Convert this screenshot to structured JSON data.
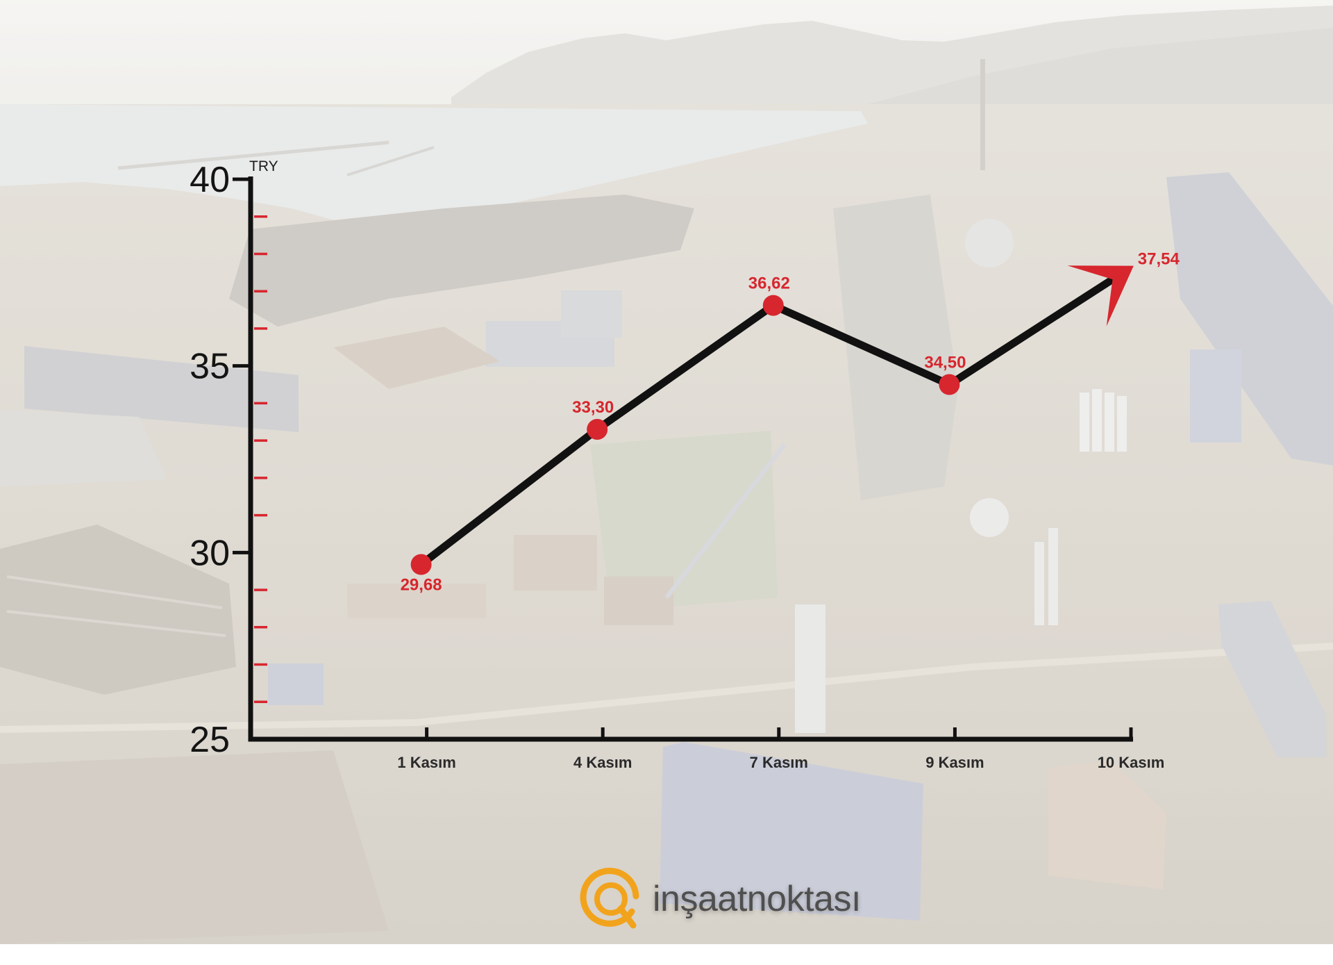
{
  "chart_data": {
    "type": "line",
    "ylabel": "TRY",
    "categories": [
      "1 Kasım",
      "4 Kasım",
      "7 Kasım",
      "9 Kasım",
      "10 Kasım"
    ],
    "values": [
      29.68,
      33.3,
      36.62,
      34.5,
      37.54
    ],
    "value_labels": [
      "29,68",
      "33,30",
      "36,62",
      "34,50",
      "37,54"
    ],
    "ylim": [
      25,
      40
    ],
    "yticks": [
      25,
      30,
      35,
      40
    ],
    "ytick_labels": [
      "25",
      "30",
      "35",
      "40"
    ],
    "y_minor_step": 1,
    "grid": false,
    "colors": {
      "line": "#111111",
      "axes": "#111111",
      "markers": "#d7262e",
      "value_labels": "#d7262e",
      "minor_ticks": "#d7262e"
    }
  },
  "logo": {
    "text": "inşaatnoktası",
    "icon": "orange-ring-icon",
    "color": "#f2a31c"
  }
}
